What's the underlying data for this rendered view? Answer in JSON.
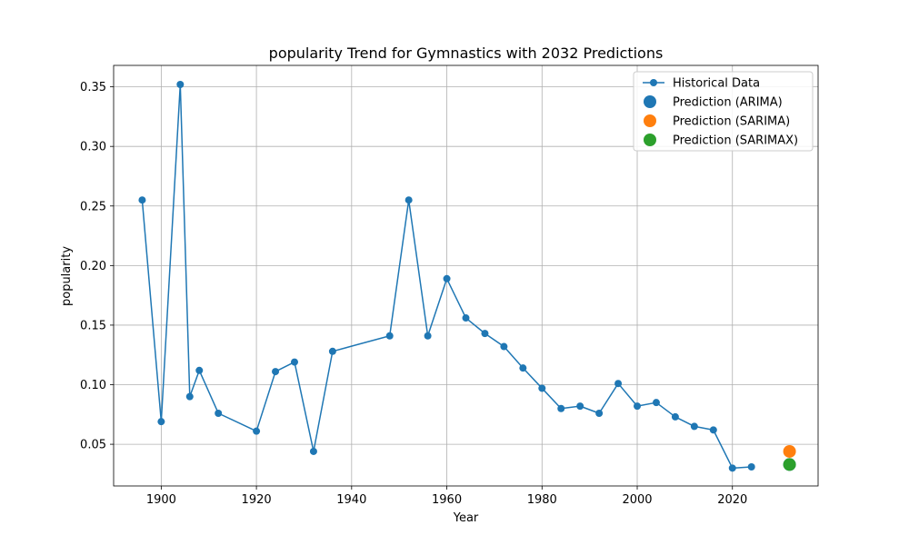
{
  "chart_data": {
    "type": "line",
    "title": "popularity Trend for Gymnastics with 2032 Predictions",
    "xlabel": "Year",
    "ylabel": "popularity",
    "xlim": [
      1890,
      2038
    ],
    "ylim": [
      0.015,
      0.368
    ],
    "x_ticks": [
      1900,
      1920,
      1940,
      1960,
      1980,
      2000,
      2020
    ],
    "y_ticks": [
      0.05,
      0.1,
      0.15,
      0.2,
      0.25,
      0.3,
      0.35
    ],
    "grid": true,
    "legend_position": "top-right",
    "series": [
      {
        "name": "Historical Data",
        "color": "#1f77b4",
        "x": [
          1896,
          1900,
          1904,
          1906,
          1908,
          1912,
          1920,
          1924,
          1928,
          1932,
          1936,
          1948,
          1952,
          1956,
          1960,
          1964,
          1968,
          1972,
          1976,
          1980,
          1984,
          1988,
          1992,
          1996,
          2000,
          2004,
          2008,
          2012,
          2016,
          2020,
          2024
        ],
        "y": [
          0.255,
          0.069,
          0.352,
          0.09,
          0.112,
          0.076,
          0.061,
          0.111,
          0.119,
          0.044,
          0.128,
          0.141,
          0.255,
          0.141,
          0.189,
          0.156,
          0.143,
          0.132,
          0.114,
          0.097,
          0.08,
          0.082,
          0.076,
          0.101,
          0.082,
          0.085,
          0.073,
          0.065,
          0.062,
          0.03,
          0.031
        ]
      },
      {
        "name": "Prediction (ARIMA)",
        "color": "#1f77b4",
        "x": [
          2032
        ],
        "y": [
          0.033
        ]
      },
      {
        "name": "Prediction (SARIMA)",
        "color": "#ff7f0e",
        "x": [
          2032
        ],
        "y": [
          0.044
        ]
      },
      {
        "name": "Prediction (SARIMAX)",
        "color": "#2ca02c",
        "x": [
          2032
        ],
        "y": [
          0.033
        ]
      }
    ]
  }
}
